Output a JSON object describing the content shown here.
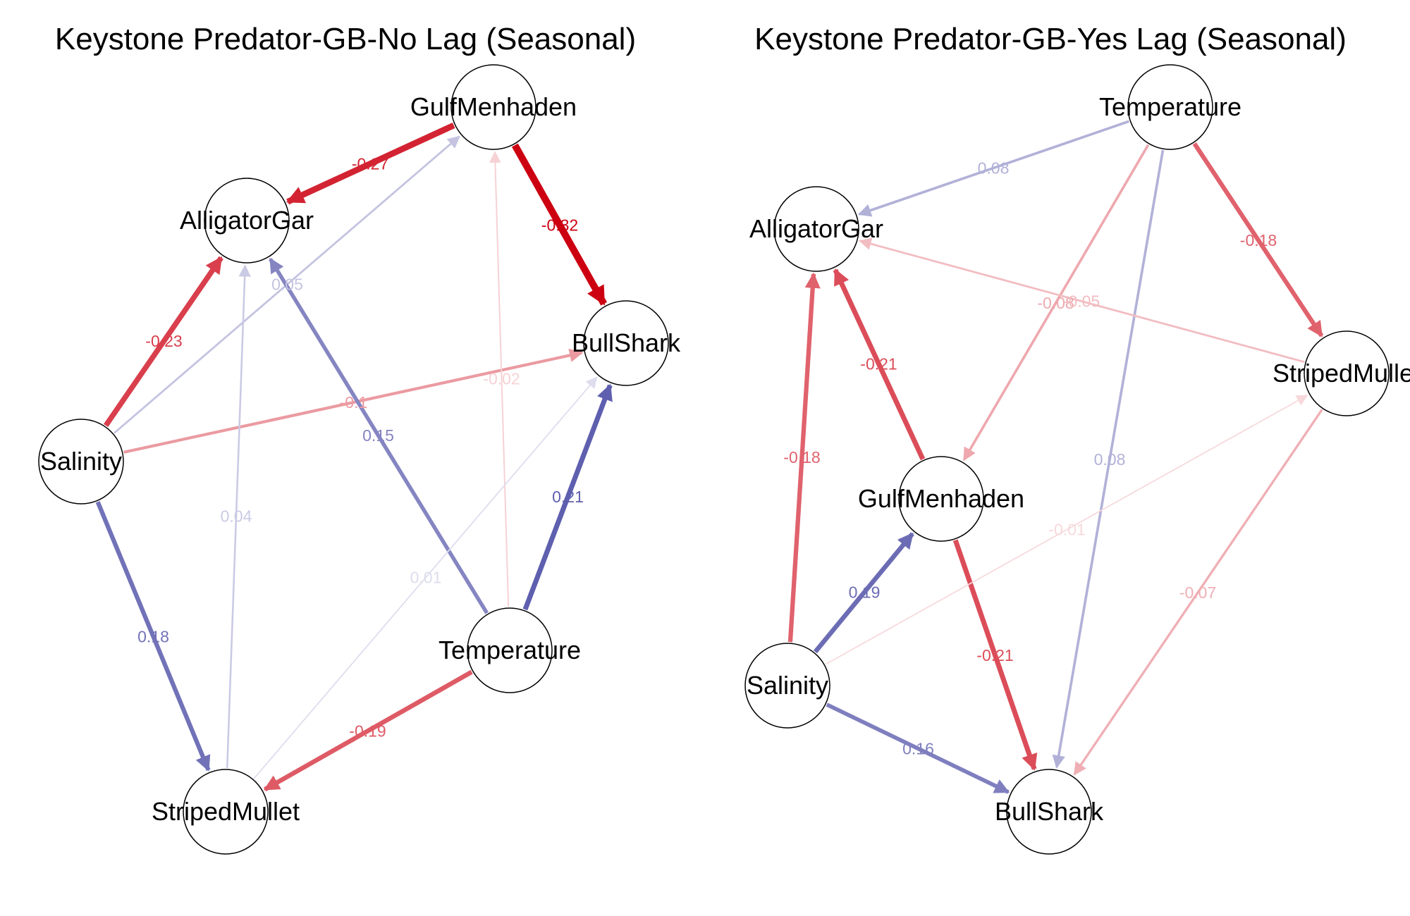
{
  "colors": {
    "positive": "#1a1a8c",
    "negative": "#cc0011",
    "node_fill": "#ffffff",
    "node_stroke": "#000000"
  },
  "panels": [
    {
      "title": "Keystone Predator-GB-No Lag (Seasonal)",
      "nodes": [
        {
          "id": "GulfMenhaden",
          "label": "GulfMenhaden"
        },
        {
          "id": "AlligatorGar",
          "label": "AlligatorGar"
        },
        {
          "id": "BullShark",
          "label": "BullShark"
        },
        {
          "id": "Salinity",
          "label": "Salinity"
        },
        {
          "id": "Temperature",
          "label": "Temperature"
        },
        {
          "id": "StripedMullet",
          "label": "StripedMullet"
        }
      ],
      "edges": [
        {
          "from": "GulfMenhaden",
          "to": "AlligatorGar",
          "weight": -0.27,
          "label": "-0.27"
        },
        {
          "from": "GulfMenhaden",
          "to": "BullShark",
          "weight": -0.32,
          "label": "-0.32"
        },
        {
          "from": "Salinity",
          "to": "AlligatorGar",
          "weight": -0.23,
          "label": "-0.23"
        },
        {
          "from": "Salinity",
          "to": "GulfMenhaden",
          "weight": 0.05,
          "label": "0.05"
        },
        {
          "from": "Salinity",
          "to": "BullShark",
          "weight": -0.1,
          "label": "-0.1"
        },
        {
          "from": "Salinity",
          "to": "StripedMullet",
          "weight": 0.18,
          "label": "0.18"
        },
        {
          "from": "Temperature",
          "to": "AlligatorGar",
          "weight": 0.15,
          "label": "0.15"
        },
        {
          "from": "Temperature",
          "to": "GulfMenhaden",
          "weight": -0.02,
          "label": "-0.02"
        },
        {
          "from": "Temperature",
          "to": "BullShark",
          "weight": 0.21,
          "label": "0.21"
        },
        {
          "from": "Temperature",
          "to": "StripedMullet",
          "weight": -0.19,
          "label": "-0.19"
        },
        {
          "from": "StripedMullet",
          "to": "AlligatorGar",
          "weight": 0.04,
          "label": "0.04"
        },
        {
          "from": "StripedMullet",
          "to": "BullShark",
          "weight": 0.01,
          "label": "0.01"
        }
      ]
    },
    {
      "title": "Keystone Predator-GB-Yes Lag (Seasonal)",
      "nodes": [
        {
          "id": "Temperature",
          "label": "Temperature"
        },
        {
          "id": "AlligatorGar",
          "label": "AlligatorGar"
        },
        {
          "id": "StripedMullet",
          "label": "StripedMullet"
        },
        {
          "id": "GulfMenhaden",
          "label": "GulfMenhaden"
        },
        {
          "id": "Salinity",
          "label": "Salinity"
        },
        {
          "id": "BullShark",
          "label": "BullShark"
        }
      ],
      "edges": [
        {
          "from": "Temperature",
          "to": "AlligatorGar",
          "weight": 0.08,
          "label": "0.08"
        },
        {
          "from": "Temperature",
          "to": "StripedMullet",
          "weight": -0.18,
          "label": "-0.18"
        },
        {
          "from": "Temperature",
          "to": "GulfMenhaden",
          "weight": -0.08,
          "label": "-0.08"
        },
        {
          "from": "Temperature",
          "to": "BullShark",
          "weight": 0.08,
          "label": "0.08"
        },
        {
          "from": "StripedMullet",
          "to": "AlligatorGar",
          "weight": -0.05,
          "label": "-0.05"
        },
        {
          "from": "StripedMullet",
          "to": "BullShark",
          "weight": -0.07,
          "label": "-0.07"
        },
        {
          "from": "GulfMenhaden",
          "to": "AlligatorGar",
          "weight": -0.21,
          "label": "-0.21"
        },
        {
          "from": "GulfMenhaden",
          "to": "BullShark",
          "weight": -0.21,
          "label": "-0.21"
        },
        {
          "from": "Salinity",
          "to": "AlligatorGar",
          "weight": -0.18,
          "label": "-0.18"
        },
        {
          "from": "Salinity",
          "to": "GulfMenhaden",
          "weight": 0.19,
          "label": "0.19"
        },
        {
          "from": "Salinity",
          "to": "BullShark",
          "weight": 0.16,
          "label": "0.16"
        },
        {
          "from": "Salinity",
          "to": "StripedMullet",
          "weight": -0.01,
          "label": "-0.01"
        }
      ]
    }
  ]
}
